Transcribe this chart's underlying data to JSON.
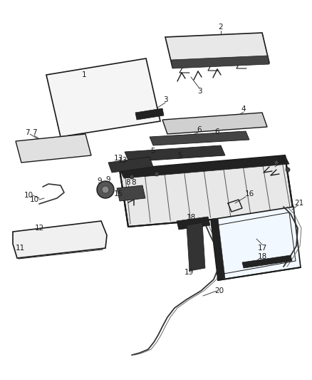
{
  "bg_color": "#ffffff",
  "line_color": "#1a1a1a",
  "fig_width": 4.38,
  "fig_height": 5.33,
  "dpi": 100,
  "label_fs": 7.5
}
